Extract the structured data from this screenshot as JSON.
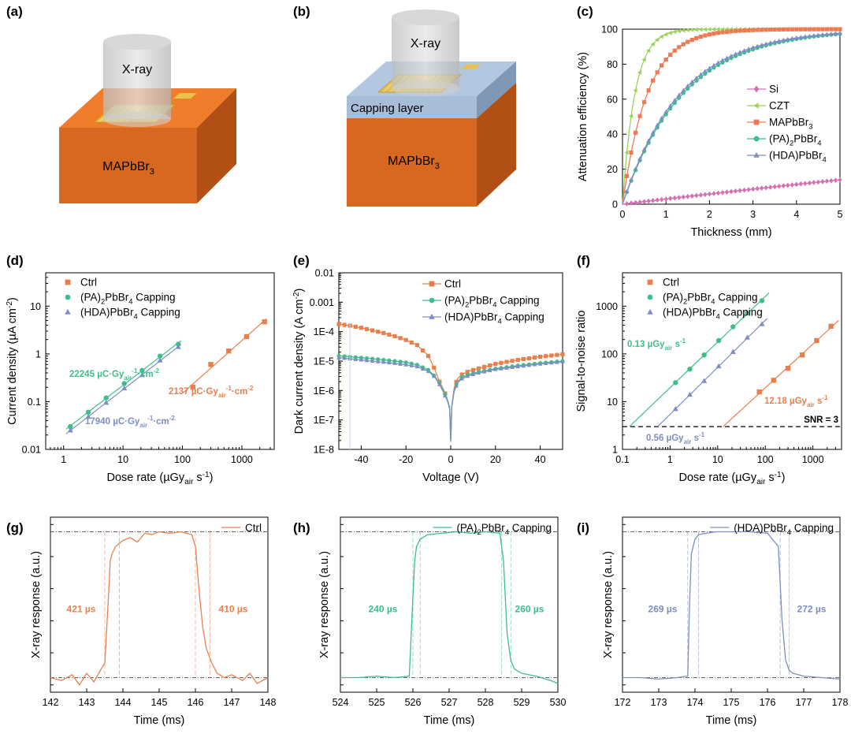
{
  "colors": {
    "ctrl": "#E8804E",
    "pa": "#3DBF8A",
    "hda": "#7E8EC4",
    "si": "#D36FB3",
    "czt": "#9BD45A",
    "mapb": "#EE7A55",
    "orange_top": "#F07D2C",
    "orange_front": "#D8671F",
    "orange_side": "#B24F14",
    "capping": "#B3C8E0"
  },
  "panel_labels": [
    "(a)",
    "(b)",
    "(c)",
    "(d)",
    "(e)",
    "(f)",
    "(g)",
    "(h)",
    "(i)"
  ],
  "schematic_a": {
    "xray": "X-ray",
    "crystal": "MAPbBr",
    "crystal_sub": "3"
  },
  "schematic_b": {
    "xray": "X-ray",
    "capping": "Capping layer",
    "crystal": "MAPbBr",
    "crystal_sub": "3"
  },
  "chart_data": [
    {
      "id": "c",
      "type": "line",
      "xlabel": "Thickness (mm)",
      "ylabel": "Attenuation efficiency (%)",
      "xlim": [
        0,
        5
      ],
      "ylim": [
        0,
        100
      ],
      "xticks": [
        0,
        1,
        2,
        3,
        4,
        5
      ],
      "yticks": [
        0,
        20,
        40,
        60,
        80,
        100
      ],
      "legend_position": "middle-right",
      "series": [
        {
          "name": "Si",
          "marker": "diamond",
          "color_key": "si",
          "mu": 0.03
        },
        {
          "name": "CZT",
          "marker": "triangle-left",
          "color_key": "czt",
          "mu": 3.5
        },
        {
          "name": "MAPbBr",
          "name_sub": "3",
          "marker": "square",
          "color_key": "mapb",
          "mu": 1.75
        },
        {
          "name": "(PA)",
          "name_sub": "2",
          "name_post": "PbBr",
          "name_sub2": "4",
          "marker": "circle",
          "color_key": "pa",
          "mu": 0.72
        },
        {
          "name": "(HDA)PbBr",
          "name_sub": "4",
          "marker": "triangle",
          "color_key": "hda",
          "mu": 0.75
        }
      ]
    },
    {
      "id": "d",
      "type": "scatter",
      "xlabel": "Dose rate (µGy",
      "xlabel_sub": "air",
      "xlabel_post": " s",
      "xlabel_sup": "-1",
      "xlabel_end": ")",
      "ylabel": "Current density (µA cm",
      "ylabel_sup": "-2",
      "ylabel_end": ")",
      "xlog": true,
      "ylog": true,
      "xlim": [
        0.5,
        3500
      ],
      "ylim": [
        0.01,
        50
      ],
      "xticks": [
        1,
        10,
        100,
        1000
      ],
      "xtick_labels": [
        "1",
        "10",
        "100",
        "1000"
      ],
      "yticks": [
        0.01,
        0.1,
        1,
        10
      ],
      "ytick_labels": [
        "0.01",
        "0.1",
        "1",
        "10"
      ],
      "legend_position": "top-left",
      "series": [
        {
          "name": "Ctrl",
          "marker": "square",
          "color_key": "ctrl",
          "x": [
            150,
            300,
            600,
            1200,
            2400
          ],
          "y": [
            0.2,
            0.6,
            1.15,
            2.3,
            4.7
          ],
          "fit_x": [
            100,
            2600
          ],
          "sensitivity_value": "2137",
          "sensitivity_unit": "µC·Gy",
          "sensitivity_sub": "air",
          "sensitivity_sup": "-1",
          "sensitivity_unit2": "·cm",
          "sensitivity_sup2": "-2"
        },
        {
          "name": "(PA)",
          "name_sub": "2",
          "name_post": "PbBr",
          "name_sub2": "4",
          "name_tail": " Capping",
          "marker": "circle",
          "color_key": "pa",
          "x": [
            1.3,
            2.6,
            5.2,
            10.5,
            21,
            42,
            85
          ],
          "y": [
            0.03,
            0.06,
            0.12,
            0.24,
            0.45,
            0.9,
            1.6
          ],
          "fit_x": [
            1.1,
            95
          ],
          "sensitivity_value": "22245",
          "sensitivity_unit": "µC·Gy",
          "sensitivity_sub": "air",
          "sensitivity_sup": "-1",
          "sensitivity_unit2": "·cm",
          "sensitivity_sup2": "-2"
        },
        {
          "name": "(HDA)PbBr",
          "name_sub": "4",
          "name_tail": " Capping",
          "marker": "triangle",
          "color_key": "hda",
          "x": [
            1.3,
            2.6,
            5.2,
            10.5,
            21,
            42,
            85
          ],
          "y": [
            0.025,
            0.048,
            0.095,
            0.19,
            0.36,
            0.73,
            1.4
          ],
          "fit_x": [
            1.1,
            95
          ],
          "sensitivity_value": "17940",
          "sensitivity_unit": "µC·Gy",
          "sensitivity_sub": "air",
          "sensitivity_sup": "-1",
          "sensitivity_unit2": "·cm",
          "sensitivity_sup2": "-2"
        }
      ]
    },
    {
      "id": "e",
      "type": "line",
      "xlabel": "Voltage (V)",
      "ylabel": "Dark current density (A cm",
      "ylabel_sup": "-2",
      "ylabel_end": ")",
      "ylog": true,
      "xlim": [
        -50,
        50
      ],
      "ylim": [
        1e-08,
        0.01
      ],
      "xticks": [
        -40,
        -20,
        0,
        20,
        40
      ],
      "yticks": [
        1e-08,
        1e-07,
        1e-06,
        1e-05,
        0.0001,
        0.001,
        0.01
      ],
      "ytick_labels": [
        "1E-8",
        "1E-7",
        "1E-6",
        "1E-5",
        "1E-4",
        "0.001",
        "0.01"
      ],
      "legend_position": "top-right",
      "series": [
        {
          "name": "Ctrl",
          "marker": "square",
          "color_key": "ctrl",
          "x": [
            -50,
            -45,
            -40,
            -35,
            -30,
            -25,
            -20,
            -15,
            -10,
            -7,
            -5,
            -3,
            -1.5,
            -0.5,
            0,
            0.5,
            1.5,
            3,
            5,
            8,
            12,
            20,
            30,
            40,
            50
          ],
          "y": [
            0.00018,
            0.00016,
            0.000135,
            0.00011,
            9e-05,
            7e-05,
            5.2e-05,
            3.5e-05,
            1.5e-05,
            5e-06,
            2e-06,
            1e-06,
            5e-07,
            2.5e-07,
            2e-08,
            3e-07,
            1.2e-06,
            2.5e-06,
            3.5e-06,
            4.5e-06,
            5.5e-06,
            8e-06,
            1.1e-05,
            1.4e-05,
            1.7e-05
          ]
        },
        {
          "name": "(PA)",
          "name_sub": "2",
          "name_post": "PbBr",
          "name_sub2": "4",
          "name_tail": " Capping",
          "marker": "circle",
          "color_key": "pa",
          "x": [
            -50,
            -45,
            -40,
            -35,
            -30,
            -25,
            -20,
            -15,
            -10,
            -7,
            -5,
            -3,
            -1.5,
            -0.5,
            0,
            0.5,
            1.5,
            3,
            5,
            8,
            12,
            20,
            30,
            40,
            50
          ],
          "y": [
            1.5e-05,
            1.4e-05,
            1.3e-05,
            1.2e-05,
            1.1e-05,
            1e-05,
            9e-06,
            7.5e-06,
            5e-06,
            3e-06,
            1.8e-06,
            9e-07,
            5e-07,
            2.8e-07,
            2e-08,
            3e-07,
            1e-06,
            2e-06,
            2.8e-06,
            3.5e-06,
            4.2e-06,
            5.5e-06,
            7e-06,
            8.5e-06,
            1e-05
          ]
        },
        {
          "name": "(HDA)PbBr",
          "name_sub": "4",
          "name_tail": " Capping",
          "marker": "triangle",
          "color_key": "hda",
          "x": [
            -50,
            -45,
            -40,
            -35,
            -30,
            -25,
            -20,
            -15,
            -10,
            -7,
            -5,
            -3,
            -1.5,
            -0.5,
            0,
            0.5,
            1.5,
            3,
            5,
            8,
            12,
            20,
            30,
            40,
            50
          ],
          "y": [
            1.3e-05,
            1.2e-05,
            1.1e-05,
            1e-05,
            9.2e-06,
            8.4e-06,
            7.5e-06,
            6.5e-06,
            4.5e-06,
            2.8e-06,
            1.6e-06,
            8e-07,
            4.5e-07,
            2.5e-07,
            1.8e-08,
            2.8e-07,
            9e-07,
            1.8e-06,
            2.5e-06,
            3.2e-06,
            3.9e-06,
            5.2e-06,
            6.5e-06,
            8e-06,
            9.5e-06
          ]
        }
      ]
    },
    {
      "id": "f",
      "type": "scatter",
      "xlabel": "Dose rate (µGy",
      "xlabel_sub": "air",
      "xlabel_post": " s",
      "xlabel_sup": "-1",
      "xlabel_end": ")",
      "ylabel": "Signal-to-noise ratio",
      "xlog": true,
      "ylog": true,
      "xlim": [
        0.1,
        4000
      ],
      "ylim": [
        1,
        5000
      ],
      "xticks": [
        0.1,
        1,
        10,
        100,
        1000
      ],
      "xtick_labels": [
        "0.1",
        "1",
        "10",
        "100",
        "1000"
      ],
      "yticks": [
        1,
        10,
        100,
        1000
      ],
      "ytick_labels": [
        "1",
        "10",
        "100",
        "1000"
      ],
      "legend_position": "top-left",
      "threshold": {
        "value": 3,
        "label": "SNR = 3"
      },
      "series": [
        {
          "name": "Ctrl",
          "marker": "square",
          "color_key": "ctrl",
          "x": [
            75,
            150,
            300,
            600,
            1200,
            2400
          ],
          "y": [
            16,
            28,
            50,
            95,
            190,
            380
          ],
          "fit_x": [
            12.18,
            3500
          ],
          "lod_value": "12.18",
          "lod_unit": "µGy",
          "lod_sub": "air",
          "lod_post": " s",
          "lod_sup": "-1"
        },
        {
          "name": "(PA)",
          "name_sub": "2",
          "name_post": "PbBr",
          "name_sub2": "4",
          "name_tail": " Capping",
          "marker": "circle",
          "color_key": "pa",
          "x": [
            1.3,
            2.6,
            5.2,
            10.5,
            21,
            42,
            85
          ],
          "y": [
            25,
            48,
            95,
            190,
            370,
            720,
            1300
          ],
          "fit_x": [
            0.13,
            120
          ],
          "lod_value": "0.13",
          "lod_unit": "µGy",
          "lod_sub": "air",
          "lod_post": " s",
          "lod_sup": "-1"
        },
        {
          "name": "(HDA)PbBr",
          "name_sub": "4",
          "name_tail": " Capping",
          "marker": "triangle",
          "color_key": "hda",
          "x": [
            1.3,
            2.6,
            5.2,
            10.5,
            21,
            42,
            85
          ],
          "y": [
            7,
            14,
            27,
            55,
            110,
            220,
            420
          ],
          "fit_x": [
            0.56,
            110
          ],
          "lod_value": "0.56",
          "lod_unit": "µGy",
          "lod_sub": "air",
          "lod_post": " s",
          "lod_sup": "-1"
        }
      ]
    },
    {
      "id": "g",
      "type": "line",
      "xlabel": "Time (ms)",
      "ylabel": "X-ray response (a.u.)",
      "xlim": [
        142,
        148
      ],
      "ylim": [
        -0.1,
        1.1
      ],
      "xticks": [
        142,
        143,
        144,
        145,
        146,
        147,
        148
      ],
      "legend_position": "top-right",
      "series": [
        {
          "name": "Ctrl",
          "color_key": "ctrl",
          "x": [
            142,
            142.3,
            142.6,
            142.8,
            143.0,
            143.2,
            143.4,
            143.5,
            143.6,
            143.65,
            143.7,
            143.8,
            144.0,
            144.2,
            144.4,
            144.6,
            144.8,
            145.0,
            145.3,
            145.6,
            145.9,
            146.0,
            146.1,
            146.2,
            146.3,
            146.45,
            146.6,
            146.8,
            147.0,
            147.3,
            147.5,
            147.7,
            148
          ],
          "y": [
            0.0,
            -0.02,
            0.02,
            -0.05,
            0.03,
            -0.03,
            0.06,
            0.1,
            0.55,
            0.8,
            0.85,
            0.9,
            0.94,
            0.96,
            0.93,
            0.99,
            0.98,
            1.0,
            0.99,
            1.0,
            0.98,
            0.9,
            0.6,
            0.35,
            0.2,
            0.1,
            0.03,
            0.0,
            0.02,
            -0.02,
            0.03,
            -0.04,
            0.0
          ]
        }
      ],
      "rise_label": "421 µs",
      "fall_label": "410 µs",
      "vlines": [
        143.5,
        143.9,
        146.0,
        146.4
      ]
    },
    {
      "id": "h",
      "type": "line",
      "xlabel": "Time (ms)",
      "ylabel": "X-ray response (a.u.)",
      "xlim": [
        524,
        530
      ],
      "ylim": [
        -0.1,
        1.1
      ],
      "xticks": [
        524,
        525,
        526,
        527,
        528,
        529,
        530
      ],
      "legend_position": "top-right",
      "series": [
        {
          "name": "(PA)",
          "name_sub": "2",
          "name_post": "PbBr",
          "name_sub2": "4",
          "name_tail": " Capping",
          "color_key": "pa",
          "x": [
            524,
            524.5,
            525,
            525.5,
            525.9,
            526.0,
            526.05,
            526.1,
            526.2,
            526.4,
            526.8,
            527.2,
            527.6,
            528.0,
            528.4,
            528.5,
            528.6,
            528.7,
            528.8,
            529.0,
            529.4,
            529.8,
            530
          ],
          "y": [
            0.0,
            0.0,
            0.01,
            0.0,
            0.01,
            0.55,
            0.8,
            0.9,
            0.95,
            0.98,
            0.99,
            1.0,
            0.99,
            1.0,
            0.99,
            0.8,
            0.3,
            0.12,
            0.06,
            0.03,
            0.01,
            -0.02,
            -0.04
          ]
        }
      ],
      "rise_label": "240 µs",
      "fall_label": "260 µs",
      "vlines": [
        526.0,
        526.2,
        528.45,
        528.7
      ]
    },
    {
      "id": "i",
      "type": "line",
      "xlabel": "Time (ms)",
      "ylabel": "X-ray response (a.u.)",
      "xlim": [
        172,
        178
      ],
      "ylim": [
        -0.1,
        1.1
      ],
      "xticks": [
        172,
        173,
        174,
        175,
        176,
        177,
        178
      ],
      "legend_position": "top-right",
      "series": [
        {
          "name": "(HDA)PbBr",
          "name_sub": "4",
          "name_tail": " Capping",
          "color_key": "hda",
          "x": [
            172,
            172.5,
            173,
            173.5,
            173.8,
            173.85,
            173.9,
            174.0,
            174.1,
            174.3,
            174.6,
            175.0,
            175.5,
            176.0,
            176.3,
            176.4,
            176.5,
            176.6,
            176.7,
            177.0,
            177.5,
            178
          ],
          "y": [
            0.0,
            0.0,
            -0.01,
            0.0,
            0.01,
            0.5,
            0.85,
            0.95,
            0.98,
            0.99,
            1.0,
            1.0,
            1.0,
            0.99,
            0.9,
            0.4,
            0.12,
            0.05,
            0.03,
            0.01,
            0.0,
            -0.01
          ]
        }
      ],
      "rise_label": "269 µs",
      "fall_label": "272 µs",
      "vlines": [
        173.8,
        174.1,
        176.35,
        176.6
      ]
    }
  ]
}
